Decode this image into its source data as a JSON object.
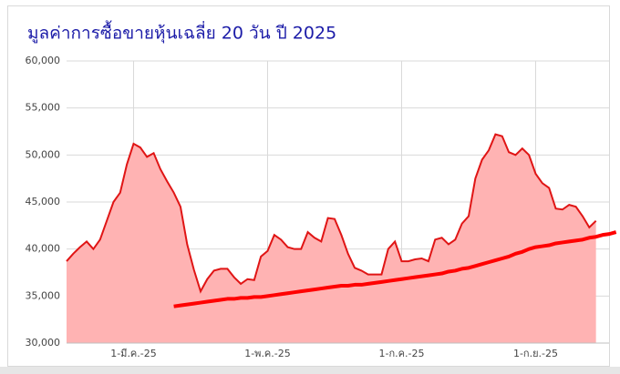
{
  "chart_data": {
    "type": "area",
    "title": "มูลค่าการซื้อขายหุ้นเฉลี่ย 20 วัน  ปี 2025",
    "categories": [
      null,
      null,
      null,
      null,
      null,
      null,
      null,
      null,
      null,
      null,
      "1-มี.ค.-25",
      null,
      null,
      null,
      null,
      null,
      null,
      null,
      null,
      null,
      null,
      null,
      null,
      null,
      null,
      null,
      null,
      null,
      null,
      null,
      "1-พ.ค.-25",
      null,
      null,
      null,
      null,
      null,
      null,
      null,
      null,
      null,
      null,
      null,
      null,
      null,
      null,
      null,
      null,
      null,
      null,
      null,
      "1-ก.ค.-25",
      null,
      null,
      null,
      null,
      null,
      null,
      null,
      null,
      null,
      null,
      null,
      null,
      null,
      null,
      null,
      null,
      null,
      null,
      null,
      "1-ก.ย.-25",
      null,
      null,
      null,
      null,
      null,
      null,
      null,
      null,
      null,
      null,
      null,
      null
    ],
    "series": [
      {
        "type": "area",
        "color": "#e01515",
        "fill": "#ffb3b3",
        "values": [
          38700,
          39500,
          40200,
          40800,
          40000,
          41000,
          43000,
          45000,
          46000,
          49000,
          51200,
          50800,
          49800,
          50200,
          48500,
          47200,
          46000,
          44500,
          40500,
          37800,
          35500,
          36800,
          37700,
          37900,
          37900,
          37000,
          36300,
          36800,
          36700,
          39200,
          39800,
          41500,
          41000,
          40200,
          40000,
          40000,
          41800,
          41200,
          40800,
          43300,
          43200,
          41500,
          39500,
          38000,
          37700,
          37300,
          37300,
          37300,
          40000,
          40800,
          38700,
          38700,
          38900,
          39000,
          38700,
          41000,
          41200,
          40500,
          41000,
          42700,
          43500,
          47500,
          49500,
          50500,
          52200,
          52000,
          50300,
          50000,
          50700,
          50000,
          48000,
          47000,
          46500,
          44300,
          44200,
          44700,
          44500,
          43500,
          42300,
          43000,
          null,
          null,
          null
        ]
      },
      {
        "type": "line",
        "color": "#ff0000",
        "values": [
          null,
          null,
          null,
          null,
          null,
          null,
          null,
          null,
          null,
          null,
          null,
          null,
          null,
          null,
          null,
          null,
          33900,
          34000,
          34100,
          34200,
          34300,
          34400,
          34500,
          34600,
          34700,
          34700,
          34800,
          34800,
          34900,
          34900,
          35000,
          35100,
          35200,
          35300,
          35400,
          35500,
          35600,
          35700,
          35800,
          35900,
          36000,
          36100,
          36100,
          36200,
          36200,
          36300,
          36400,
          36500,
          36600,
          36700,
          36800,
          36900,
          37000,
          37100,
          37200,
          37300,
          37400,
          37600,
          37700,
          37900,
          38000,
          38200,
          38400,
          38600,
          38800,
          39000,
          39200,
          39500,
          39700,
          40000,
          40200,
          40300,
          40400,
          40600,
          40700,
          40800,
          40900,
          41000,
          41200,
          41300,
          41500,
          41600,
          41800
        ]
      }
    ],
    "ylim": [
      30000,
      60000
    ],
    "yticks": [
      {
        "value": 30000,
        "label": "30,000"
      },
      {
        "value": 35000,
        "label": "35,000"
      },
      {
        "value": 40000,
        "label": "40,000"
      },
      {
        "value": 45000,
        "label": "45,000"
      },
      {
        "value": 50000,
        "label": "50,000"
      },
      {
        "value": 55000,
        "label": "55,000"
      },
      {
        "value": 60000,
        "label": "60,000"
      }
    ],
    "grid": true
  }
}
